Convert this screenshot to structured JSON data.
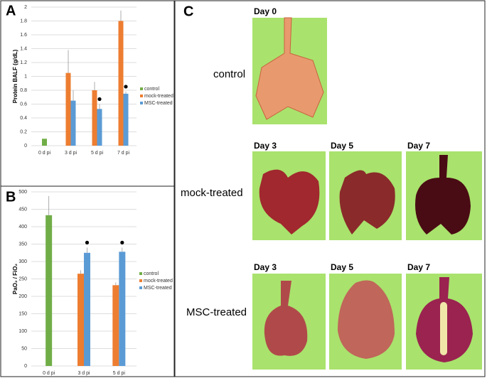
{
  "chart_data": [
    {
      "type": "bar",
      "panel_label": "A",
      "y_label": "Protein BALF (g/dL)",
      "categories": [
        "0 d pi",
        "3 d pi",
        "5 d pi",
        "7 d pi"
      ],
      "series": [
        {
          "name": "control",
          "color": "#70ad47",
          "values": [
            0.1,
            null,
            null,
            null
          ],
          "errors": [
            0,
            null,
            null,
            null
          ]
        },
        {
          "name": "mock-treated",
          "color": "#ed7d31",
          "values": [
            null,
            1.05,
            0.8,
            1.8
          ],
          "errors": [
            null,
            0.33,
            0.12,
            0.15
          ]
        },
        {
          "name": "MSC-treated",
          "color": "#5b9bd5",
          "values": [
            null,
            0.65,
            0.53,
            0.75
          ],
          "errors": [
            null,
            0.15,
            0.07,
            0.03
          ],
          "significance_dots": [
            false,
            false,
            true,
            true
          ]
        }
      ],
      "ylim": [
        0,
        2
      ],
      "yticks": [
        0,
        0.2,
        0.4,
        0.6,
        0.8,
        1,
        1.2,
        1.4,
        1.6,
        1.8,
        2
      ],
      "grid": true,
      "legend": "right"
    },
    {
      "type": "bar",
      "panel_label": "B",
      "y_label": "PaO₂ / FiO₂",
      "categories": [
        "0 d pi",
        "3 d pi",
        "5 d pi"
      ],
      "series": [
        {
          "name": "control",
          "color": "#70ad47",
          "values": [
            433,
            null,
            null
          ],
          "errors": [
            55,
            null,
            null
          ]
        },
        {
          "name": "mock-treated",
          "color": "#ed7d31",
          "values": [
            null,
            265,
            232
          ],
          "errors": [
            null,
            10,
            8
          ]
        },
        {
          "name": "MSC-treated",
          "color": "#5b9bd5",
          "values": [
            null,
            325,
            328
          ],
          "errors": [
            null,
            15,
            12
          ],
          "significance_dots": [
            false,
            true,
            true
          ]
        }
      ],
      "ylim": [
        0,
        500
      ],
      "yticks": [
        0,
        50,
        100,
        150,
        200,
        250,
        300,
        350,
        400,
        450,
        500
      ],
      "grid": true,
      "legend": "right"
    }
  ],
  "panel_c": {
    "label": "C",
    "rows": [
      {
        "name": "control",
        "days": [
          "Day 0"
        ]
      },
      {
        "name": "mock-treated",
        "days": [
          "Day 3",
          "Day 5",
          "Day 7"
        ]
      },
      {
        "name": "MSC-treated",
        "days": [
          "Day 3",
          "Day 5",
          "Day 7"
        ]
      }
    ]
  }
}
